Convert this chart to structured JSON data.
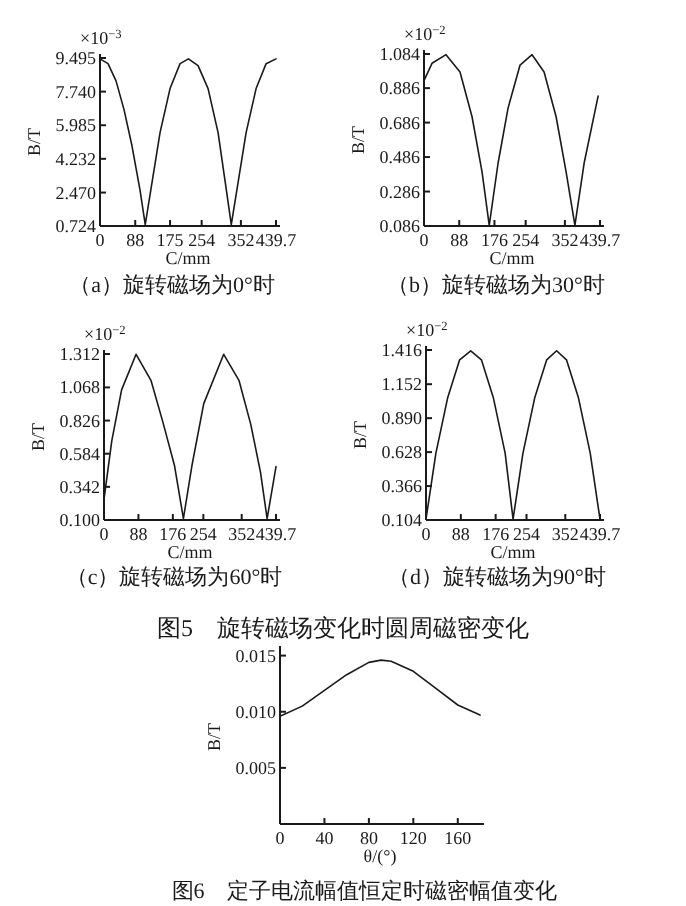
{
  "chart_data": [
    {
      "type": "line",
      "title": "（a）旋转磁场为0°时",
      "xlabel": "C/mm",
      "ylabel": "B/T",
      "annotations": [
        "×10$^{−3}$"
      ],
      "xlim": [
        0,
        439.7
      ],
      "ylim": [
        0.724,
        9.495
      ],
      "xticks": [
        0,
        88,
        175,
        254,
        352,
        439.7
      ],
      "yticks": [
        {
          "value": 0.724,
          "label": "0.724"
        },
        {
          "value": 2.47,
          "label": "2.470"
        },
        {
          "value": 4.232,
          "label": "4.232"
        },
        {
          "value": 5.985,
          "label": "5.985"
        },
        {
          "value": 7.74,
          "label": "7.740"
        },
        {
          "value": 9.495,
          "label": "9.495"
        }
      ],
      "grid": false,
      "series": [
        {
          "color": "#1a1a1a",
          "x": [
            0,
            20,
            40,
            60,
            80,
            100,
            113,
            130,
            150,
            175,
            200,
            221,
            245,
            270,
            295,
            315,
            328,
            345,
            365,
            390,
            415,
            439.7
          ],
          "values": [
            9.45,
            9.2,
            8.3,
            6.8,
            4.9,
            2.6,
            0.8,
            3.0,
            5.6,
            7.9,
            9.2,
            9.45,
            9.1,
            7.9,
            5.6,
            2.7,
            0.8,
            3.0,
            5.6,
            7.9,
            9.2,
            9.45
          ]
        }
      ]
    },
    {
      "type": "line",
      "title": "（b）旋转磁场为30°时",
      "xlabel": "C/mm",
      "ylabel": "B/T",
      "annotations": [
        "×10$^{−2}$"
      ],
      "xlim": [
        0,
        439.7
      ],
      "ylim": [
        0.086,
        1.084
      ],
      "xticks": [
        0,
        88,
        176,
        254,
        352,
        439.7
      ],
      "yticks": [
        0.086,
        0.286,
        0.486,
        0.686,
        0.886,
        1.084
      ],
      "grid": false,
      "series": [
        {
          "color": "#1a1a1a",
          "x": [
            0,
            20,
            55,
            90,
            120,
            145,
            163,
            185,
            210,
            240,
            270,
            300,
            330,
            355,
            377,
            400,
            435
          ],
          "values": [
            0.93,
            1.03,
            1.08,
            0.98,
            0.72,
            0.4,
            0.09,
            0.45,
            0.77,
            1.02,
            1.08,
            0.98,
            0.72,
            0.4,
            0.09,
            0.45,
            0.84
          ]
        }
      ]
    },
    {
      "type": "line",
      "title": "（c）旋转磁场为60°时",
      "xlabel": "C/mm",
      "ylabel": "B/T",
      "annotations": [
        "×10$^{−2}$"
      ],
      "xlim": [
        0,
        439.7
      ],
      "ylim": [
        0.1,
        1.312
      ],
      "xticks": [
        0,
        88,
        176,
        254,
        352,
        439.7
      ],
      "yticks": [
        {
          "value": 0.1,
          "label": "0.100"
        },
        0.342,
        0.584,
        0.826,
        1.068,
        1.312
      ],
      "grid": false,
      "series": [
        {
          "color": "#1a1a1a",
          "x": [
            0,
            20,
            45,
            82,
            120,
            150,
            180,
            203,
            225,
            255,
            306,
            345,
            375,
            400,
            417,
            439.7
          ],
          "values": [
            0.25,
            0.68,
            1.05,
            1.31,
            1.12,
            0.82,
            0.5,
            0.11,
            0.5,
            0.95,
            1.31,
            1.12,
            0.8,
            0.45,
            0.11,
            0.49
          ]
        }
      ]
    },
    {
      "type": "line",
      "title": "（d）旋转磁场为90°时",
      "xlabel": "C/mm",
      "ylabel": "B/T",
      "annotations": [
        "×10$^{−2}$",
        "图5　旋转磁场变化时圆周磁密变化"
      ],
      "xlim": [
        0,
        439.7
      ],
      "ylim": [
        0.104,
        1.416
      ],
      "xticks": [
        0,
        88,
        176,
        254,
        352,
        439.7
      ],
      "yticks": [
        0.104,
        0.366,
        0.628,
        {
          "value": 0.89,
          "label": "0.890"
        },
        1.152,
        1.416
      ],
      "grid": false,
      "series": [
        {
          "color": "#1a1a1a",
          "x": [
            0,
            25,
            55,
            85,
            113,
            140,
            170,
            200,
            220,
            245,
            275,
            305,
            330,
            355,
            385,
            415,
            439.7
          ],
          "values": [
            0.11,
            0.62,
            1.05,
            1.34,
            1.41,
            1.34,
            1.05,
            0.62,
            0.11,
            0.62,
            1.05,
            1.34,
            1.41,
            1.34,
            1.05,
            0.62,
            0.11
          ]
        }
      ]
    },
    {
      "type": "line",
      "title": "图6　定子电流幅值恒定时磁密幅值变化",
      "xlabel": "θ/(°)",
      "ylabel": "B/T",
      "xlim": [
        0,
        180
      ],
      "ylim": [
        0,
        0.0155
      ],
      "xticks": [
        0,
        40,
        80,
        120,
        160
      ],
      "yticks": [
        {
          "value": 0.005,
          "label": "0.005"
        },
        {
          "value": 0.01,
          "label": "0.010"
        },
        {
          "value": 0.015,
          "label": "0.015"
        }
      ],
      "grid": false,
      "series": [
        {
          "color": "#1a1a1a",
          "x": [
            0,
            20,
            40,
            60,
            80,
            91,
            100,
            120,
            140,
            160,
            180
          ],
          "values": [
            0.0096,
            0.0105,
            0.0119,
            0.0133,
            0.0144,
            0.0146,
            0.0145,
            0.0136,
            0.0121,
            0.0106,
            0.0097
          ]
        }
      ]
    }
  ]
}
